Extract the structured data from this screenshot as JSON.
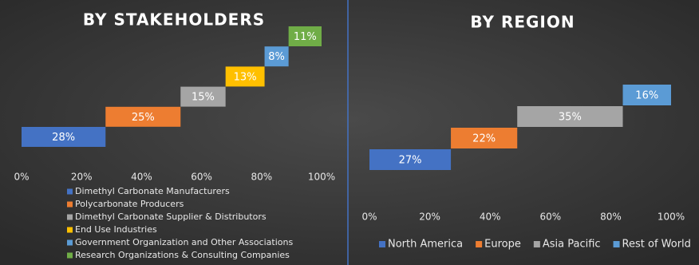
{
  "chart_data": [
    {
      "type": "waterfall",
      "title": "BY STAKEHOLDERS",
      "categories": [
        "Dimethyl Carbonate Manufacturers",
        "Polycarbonate Producers",
        "Dimethyl Carbonate Supplier & Distributors",
        "End Use Industries",
        "Government Organization and Other Associations",
        "Research Organizations & Consulting Companies"
      ],
      "values": [
        28,
        25,
        15,
        13,
        8,
        11
      ],
      "value_labels": [
        "28%",
        "25%",
        "15%",
        "13%",
        "8%",
        "11%"
      ],
      "colors": [
        "#4472c4",
        "#ed7d31",
        "#a5a5a5",
        "#ffc000",
        "#5b9bd5",
        "#70ad47"
      ],
      "xlim": [
        0,
        100
      ],
      "xticks": [
        {
          "value": 0,
          "label": "0%"
        },
        {
          "value": 20,
          "label": "20%"
        },
        {
          "value": 40,
          "label": "40%"
        },
        {
          "value": 60,
          "label": "60%"
        },
        {
          "value": 80,
          "label": "80%"
        },
        {
          "value": 100,
          "label": "100%"
        }
      ],
      "legend": "bottom"
    },
    {
      "type": "waterfall",
      "title": "BY REGION",
      "categories": [
        "North America",
        "Europe",
        "Asia Pacific",
        "Rest of World"
      ],
      "values": [
        27,
        22,
        35,
        16
      ],
      "value_labels": [
        "27%",
        "22%",
        "35%",
        "16%"
      ],
      "colors": [
        "#4472c4",
        "#ed7d31",
        "#a5a5a5",
        "#5b9bd5"
      ],
      "xlim": [
        0,
        100
      ],
      "xticks": [
        {
          "value": 0,
          "label": "0%"
        },
        {
          "value": 20,
          "label": "20%"
        },
        {
          "value": 40,
          "label": "40%"
        },
        {
          "value": 60,
          "label": "60%"
        },
        {
          "value": 80,
          "label": "80%"
        },
        {
          "value": 100,
          "label": "100%"
        }
      ],
      "legend": "bottom"
    }
  ]
}
